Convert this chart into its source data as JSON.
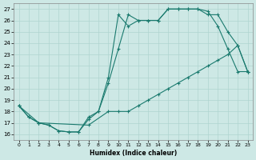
{
  "xlabel": "Humidex (Indice chaleur)",
  "xlim": [
    -0.5,
    23.5
  ],
  "ylim": [
    15.5,
    27.5
  ],
  "yticks": [
    16,
    17,
    18,
    19,
    20,
    21,
    22,
    23,
    24,
    25,
    26,
    27
  ],
  "xticks": [
    0,
    1,
    2,
    3,
    4,
    5,
    6,
    7,
    8,
    9,
    10,
    11,
    12,
    13,
    14,
    15,
    16,
    17,
    18,
    19,
    20,
    21,
    22,
    23
  ],
  "line_color": "#1a7a6e",
  "bg_color": "#cde8e5",
  "grid_color": "#b0d4d0",
  "curve1_x": [
    0,
    1,
    2,
    3,
    4,
    5,
    6,
    7,
    8,
    9,
    10,
    11,
    12,
    13,
    14,
    15,
    16,
    17,
    18,
    19,
    20,
    21,
    22,
    23
  ],
  "curve1_y": [
    18.5,
    17.5,
    17.0,
    16.8,
    16.3,
    16.2,
    16.2,
    17.5,
    18.0,
    21.0,
    26.5,
    25.5,
    26.0,
    26.0,
    26.0,
    27.0,
    27.0,
    27.0,
    27.0,
    26.8,
    25.5,
    23.5,
    21.5,
    21.5
  ],
  "curve2_x": [
    0,
    1,
    2,
    3,
    4,
    5,
    6,
    7,
    8,
    9,
    10,
    11,
    12,
    13,
    14,
    15,
    16,
    17,
    18,
    19,
    20,
    21,
    22,
    23
  ],
  "curve2_y": [
    18.5,
    17.5,
    17.0,
    16.8,
    16.3,
    16.2,
    16.2,
    17.3,
    18.0,
    20.5,
    23.5,
    26.5,
    26.0,
    26.0,
    26.0,
    27.0,
    27.0,
    27.0,
    27.0,
    26.5,
    26.5,
    25.0,
    23.8,
    21.5
  ],
  "curve3_x": [
    0,
    2,
    7,
    9,
    10,
    11,
    12,
    13,
    14,
    15,
    16,
    17,
    18,
    19,
    20,
    21,
    22,
    23
  ],
  "curve3_y": [
    18.5,
    17.0,
    16.8,
    18.0,
    18.0,
    18.0,
    18.5,
    19.0,
    19.5,
    20.0,
    20.5,
    21.0,
    21.5,
    22.0,
    22.5,
    23.0,
    23.8,
    21.5
  ]
}
